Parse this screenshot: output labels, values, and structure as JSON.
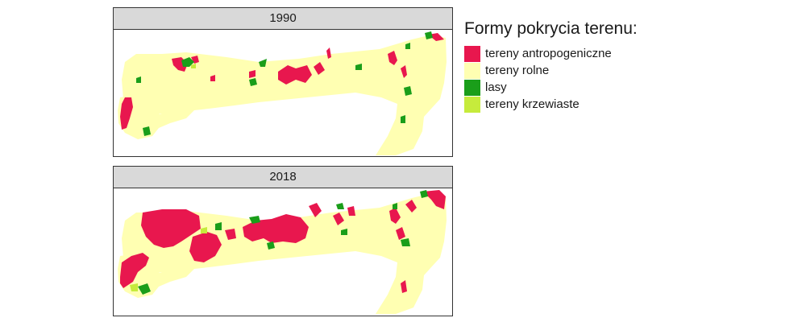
{
  "legend": {
    "title": "Formy pokrycia terenu:",
    "items": [
      {
        "label": "tereny antropogeniczne",
        "color": "#e8174e"
      },
      {
        "label": "tereny rolne",
        "color": "#ffffb2"
      },
      {
        "label": "lasy",
        "color": "#1a9e1a"
      },
      {
        "label": "tereny krzewiaste",
        "color": "#c6eb3c"
      }
    ]
  },
  "panels": [
    {
      "year": "1990"
    },
    {
      "year": "2018"
    }
  ]
}
